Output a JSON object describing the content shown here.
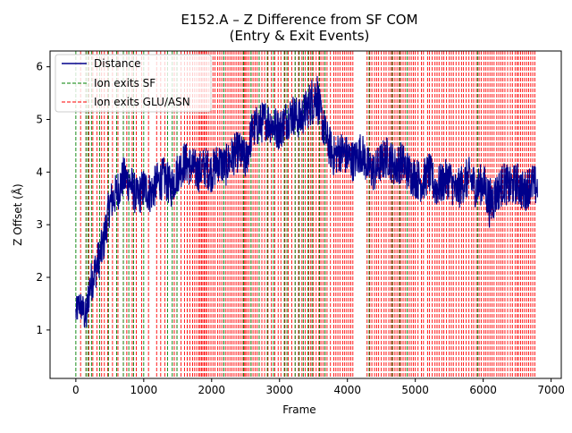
{
  "chart_data": {
    "type": "line",
    "title": "E152.A – Z Difference from SF COM",
    "subtitle": "(Entry & Exit Events)",
    "xlabel": "Frame",
    "ylabel": "Z Offset (Å)",
    "xlim": [
      -380,
      7150
    ],
    "ylim": [
      0.08,
      6.3
    ],
    "xticks": [
      0,
      1000,
      2000,
      3000,
      4000,
      5000,
      6000,
      7000
    ],
    "yticks": [
      1,
      2,
      3,
      4,
      5,
      6
    ],
    "grid": false,
    "legend": {
      "placement": "top-left",
      "entries": [
        {
          "label": "Distance",
          "color": "#00008b",
          "style": "solid"
        },
        {
          "label": "Ion exits SF",
          "color": "#008000",
          "style": "dashed"
        },
        {
          "label": "Ion exits GLU/ASN",
          "color": "#ff0000",
          "style": "dashed"
        }
      ]
    },
    "series": [
      {
        "name": "Distance",
        "color": "#00008b",
        "x": [
          0,
          50,
          100,
          150,
          200,
          250,
          300,
          350,
          400,
          450,
          500,
          600,
          700,
          800,
          900,
          1000,
          1100,
          1200,
          1300,
          1400,
          1500,
          1600,
          1700,
          1800,
          1900,
          2000,
          2100,
          2200,
          2300,
          2400,
          2500,
          2600,
          2700,
          2800,
          2900,
          3000,
          3100,
          3200,
          3300,
          3400,
          3500,
          3550,
          3600,
          3700,
          3800,
          3900,
          4000,
          4100,
          4200,
          4300,
          4400,
          4500,
          4600,
          4700,
          4800,
          4900,
          5000,
          5100,
          5200,
          5300,
          5400,
          5500,
          5600,
          5700,
          5800,
          5900,
          6000,
          6100,
          6200,
          6300,
          6400,
          6500,
          6600,
          6700,
          6800
        ],
        "y": [
          1.3,
          1.5,
          1.4,
          1.2,
          1.8,
          2.0,
          2.2,
          2.4,
          2.6,
          3.0,
          3.4,
          3.6,
          3.9,
          3.8,
          3.5,
          3.7,
          3.6,
          3.8,
          3.9,
          3.7,
          4.0,
          4.2,
          4.1,
          4.0,
          4.1,
          4.0,
          4.2,
          4.1,
          4.3,
          4.4,
          4.2,
          4.8,
          4.9,
          5.0,
          4.9,
          4.8,
          5.0,
          5.1,
          5.0,
          5.2,
          5.4,
          5.5,
          5.1,
          4.6,
          4.3,
          4.4,
          4.3,
          4.2,
          4.4,
          4.1,
          4.0,
          4.2,
          4.3,
          4.1,
          4.2,
          4.0,
          3.9,
          3.8,
          4.0,
          3.7,
          3.8,
          3.9,
          3.6,
          3.8,
          3.9,
          3.7,
          3.8,
          3.4,
          3.6,
          3.8,
          3.7,
          3.8,
          3.6,
          3.8,
          3.7
        ],
        "noise": [
          0.3,
          0.3,
          0.3,
          0.4,
          0.4,
          0.4,
          0.4,
          0.4,
          0.4,
          0.4,
          0.4,
          0.4,
          0.4,
          0.4,
          0.4,
          0.4,
          0.4,
          0.4,
          0.4,
          0.4,
          0.4,
          0.4,
          0.4,
          0.4,
          0.4,
          0.4,
          0.4,
          0.4,
          0.4,
          0.4,
          0.4,
          0.4,
          0.4,
          0.4,
          0.4,
          0.4,
          0.4,
          0.4,
          0.4,
          0.4,
          0.5,
          0.5,
          0.4,
          0.4,
          0.4,
          0.4,
          0.4,
          0.4,
          0.4,
          0.4,
          0.4,
          0.4,
          0.4,
          0.4,
          0.4,
          0.4,
          0.4,
          0.4,
          0.4,
          0.4,
          0.4,
          0.4,
          0.4,
          0.4,
          0.4,
          0.4,
          0.4,
          0.5,
          0.4,
          0.4,
          0.4,
          0.4,
          0.4,
          0.4,
          0.4
        ]
      }
    ],
    "sf_exit_events": [
      0,
      150,
      180,
      230,
      350,
      480,
      600,
      700,
      780,
      850,
      1000,
      1350,
      1420,
      1490,
      2180,
      2470,
      2580,
      2700,
      2820,
      2910,
      3070,
      3110,
      3230,
      3290,
      3350,
      3420,
      3480,
      3590,
      3670,
      4320,
      4660,
      4770,
      4880,
      5920
    ],
    "glu_asn_exit_events": [
      70,
      150,
      190,
      250,
      310,
      380,
      420,
      470,
      540,
      620,
      700,
      750,
      830,
      890,
      970,
      1070,
      1190,
      1250,
      1310,
      1450,
      1490,
      1550,
      1600,
      1640,
      1680,
      1720,
      1750,
      1780,
      1810,
      1830,
      1850,
      1870,
      1890,
      1910,
      1930,
      1960,
      1990,
      2020,
      2050,
      2090,
      2120,
      2150,
      2180,
      2210,
      2240,
      2270,
      2300,
      2330,
      2360,
      2390,
      2420,
      2450,
      2480,
      2500,
      2520,
      2550,
      2580,
      2610,
      2640,
      2670,
      2700,
      2740,
      2780,
      2830,
      2880,
      2930,
      2980,
      3020,
      3080,
      3130,
      3180,
      3230,
      3280,
      3330,
      3380,
      3430,
      3460,
      3500,
      3540,
      3580,
      3610,
      3640,
      3670,
      3700,
      3750,
      3800,
      3830,
      3860,
      3890,
      3930,
      3960,
      3990,
      4020,
      4050,
      4080,
      4290,
      4330,
      4360,
      4400,
      4430,
      4460,
      4500,
      4540,
      4570,
      4610,
      4640,
      4670,
      4700,
      4730,
      4760,
      4790,
      4820,
      4850,
      4880,
      4910,
      4940,
      4970,
      5000,
      5040,
      5090,
      5120,
      5180,
      5210,
      5250,
      5290,
      5320,
      5350,
      5390,
      5420,
      5460,
      5500,
      5530,
      5560,
      5600,
      5640,
      5680,
      5710,
      5750,
      5790,
      5830,
      5860,
      5900,
      5940,
      5970,
      6010,
      6040,
      6070,
      6100,
      6130,
      6160,
      6200,
      6230,
      6260,
      6290,
      6320,
      6360,
      6400,
      6430,
      6470,
      6500,
      6520,
      6550,
      6580,
      6610,
      6640,
      6670,
      6700,
      6730,
      6760
    ]
  }
}
